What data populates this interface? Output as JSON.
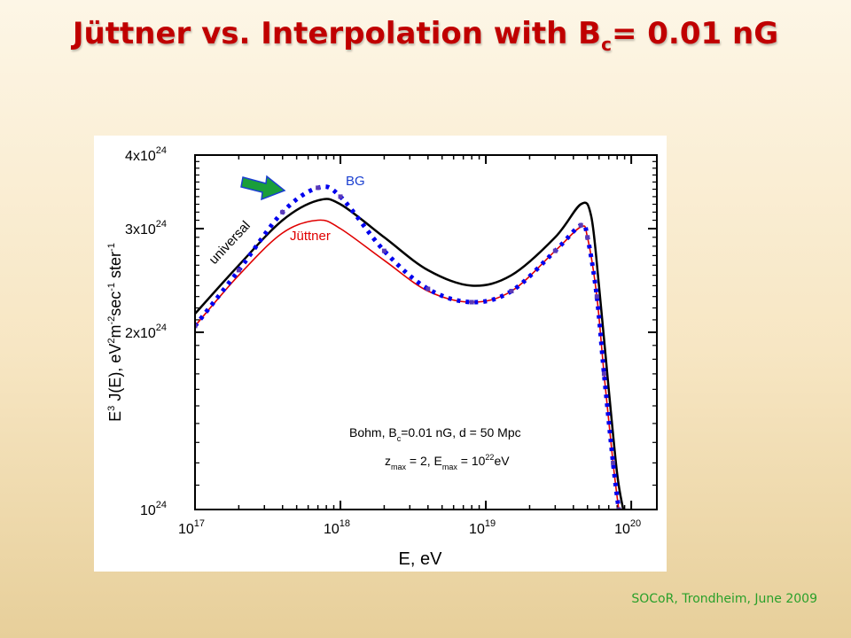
{
  "slide": {
    "title_main": "Jüttner vs. Interpolation with B",
    "title_sub": "c",
    "title_end": "= 0.01 nG",
    "footer": "SOCoR, Trondheim, June 2009"
  },
  "chart_data": {
    "type": "line",
    "xlabel": "E, eV",
    "ylabel": {
      "parts": [
        "E",
        "3",
        " J(E),  eV",
        "2",
        "m",
        "-2",
        "sec",
        "-1",
        " ster",
        "-1"
      ]
    },
    "xscale": "log",
    "yscale": "log",
    "xlim": [
      1e+17,
      1.5e+20
    ],
    "ylim": [
      1e+24,
      4e+24
    ],
    "x_ticks": [
      {
        "value": 1e+17,
        "base": "10",
        "exp": "17"
      },
      {
        "value": 1e+18,
        "base": "10",
        "exp": "18"
      },
      {
        "value": 1e+19,
        "base": "10",
        "exp": "19"
      },
      {
        "value": 1e+20,
        "base": "10",
        "exp": "20"
      }
    ],
    "y_ticks": [
      {
        "value": 1e+24,
        "base": "10",
        "exp": "24"
      },
      {
        "value": 2e+24,
        "base": "2x10",
        "exp": "24"
      },
      {
        "value": 3e+24,
        "base": "3x10",
        "exp": "24"
      },
      {
        "value": 4e+24,
        "base": "4x10",
        "exp": "24"
      }
    ],
    "series": [
      {
        "name": "universal",
        "color": "#000000",
        "style": "solid",
        "x": [
          1e+17,
          2e+17,
          4e+17,
          7e+17,
          1e+18,
          2e+18,
          4e+18,
          8e+18,
          1.5e+19,
          3e+19,
          4.5e+19,
          5.3e+19,
          6e+19,
          7e+19,
          8e+19,
          8.8e+19
        ],
        "y": [
          2.15e+24,
          2.6e+24,
          3.1e+24,
          3.35e+24,
          3.3e+24,
          2.9e+24,
          2.55e+24,
          2.4e+24,
          2.5e+24,
          2.9e+24,
          3.3e+24,
          3.15e+24,
          2.4e+24,
          1.6e+24,
          1.15e+24,
          1e+24
        ]
      },
      {
        "name": "Jüttner",
        "color": "#e00000",
        "style": "solid",
        "x": [
          1e+17,
          2e+17,
          4e+17,
          7e+17,
          1e+18,
          2e+18,
          4e+18,
          8e+18,
          1.5e+19,
          3e+19,
          4.5e+19,
          5e+19,
          5.8e+19,
          6.5e+19,
          7.5e+19,
          8.2e+19
        ],
        "y": [
          2.05e+24,
          2.5e+24,
          2.95e+24,
          3.1e+24,
          3e+24,
          2.65e+24,
          2.35e+24,
          2.25e+24,
          2.35e+24,
          2.75e+24,
          3.02e+24,
          2.9e+24,
          2.3e+24,
          1.7e+24,
          1.2e+24,
          1e+24
        ]
      },
      {
        "name": "BG",
        "color": "#0000ee",
        "style": "dotted",
        "x": [
          1e+17,
          2e+17,
          4e+17,
          7e+17,
          1e+18,
          2e+18,
          4e+18,
          8e+18,
          1.5e+19,
          3e+19,
          4.5e+19,
          5e+19,
          5.8e+19,
          6.5e+19,
          7.5e+19,
          8.2e+19
        ],
        "y": [
          2.05e+24,
          2.55e+24,
          3.2e+24,
          3.52e+24,
          3.4e+24,
          2.75e+24,
          2.37e+24,
          2.25e+24,
          2.35e+24,
          2.75e+24,
          3.04e+24,
          2.9e+24,
          2.3e+24,
          1.7e+24,
          1.2e+24,
          1e+24
        ]
      }
    ],
    "annotations": {
      "params_line1": [
        "Bohm,  B",
        "c",
        "=0.01 nG, d = 50 Mpc"
      ],
      "params_line2": [
        "z",
        "max",
        " = 2, E",
        "max",
        " = 10",
        "22",
        "eV"
      ],
      "arrow_color": "#1a9e3a"
    }
  }
}
